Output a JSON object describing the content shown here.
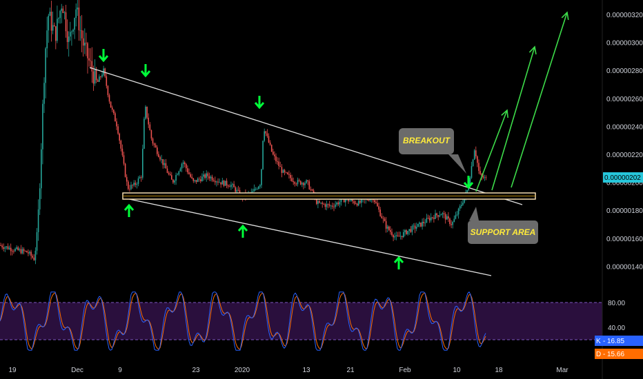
{
  "chart_data": [
    {
      "type": "candlestick",
      "title": "",
      "y_axis": {
        "ticks": [
          "0.00000320",
          "0.00000300",
          "0.00000280",
          "0.00000260",
          "0.00000240",
          "0.00000220",
          "0.00000200",
          "0.00000180",
          "0.00000160",
          "0.00000140"
        ],
        "tick_values": [
          320,
          300,
          280,
          260,
          240,
          220,
          200,
          180,
          160,
          140
        ],
        "unit_scale": "1e-8",
        "current_price_label": "0.00000202",
        "current_price": 202
      },
      "x_axis": {
        "ticks": [
          "19",
          "Dec",
          "9",
          "23",
          "2020",
          "13",
          "21",
          "Feb",
          "10",
          "18",
          "Mar"
        ]
      },
      "annotations": [
        {
          "text": "BREAKOUT"
        },
        {
          "text": "SUPPORT AREA"
        }
      ],
      "drawings": [
        "descending-resistance-line",
        "descending-support-line",
        "horizontal-support-zone",
        "projection-arrows",
        "down-arrows",
        "up-arrows"
      ],
      "colors": {
        "up": "#26a69a",
        "down": "#ef5350",
        "support_zone": "#f5deb3",
        "arrows": "#00ff3a",
        "projection": "#3ddc4a"
      }
    },
    {
      "type": "line",
      "name": "Stochastic",
      "y_axis": {
        "ticks": [
          "80.00",
          "40.00"
        ],
        "tick_values": [
          80,
          40
        ],
        "band": [
          20,
          80
        ]
      },
      "series": [
        {
          "name": "K",
          "label": "K",
          "value_label": "16.85",
          "color": "#2962ff"
        },
        {
          "name": "D",
          "label": "D",
          "value_label": "15.66",
          "color": "#ff6d00"
        }
      ],
      "colors": {
        "band": "#2a0f3d"
      }
    }
  ]
}
